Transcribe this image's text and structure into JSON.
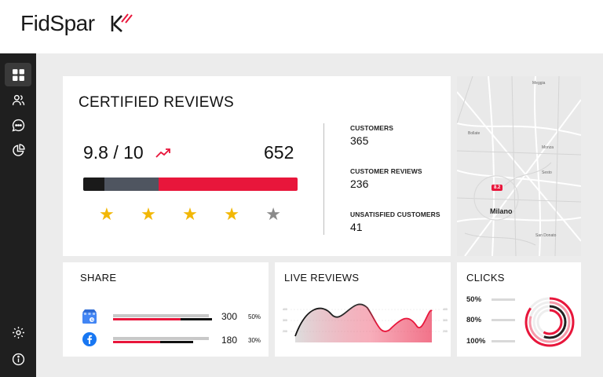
{
  "app": {
    "logo_text": "FidSpar",
    "colors": {
      "accent": "#e8163b",
      "sidebar": "#1f1f1f",
      "background": "#ececec",
      "star": "#f2b705"
    }
  },
  "sidebar": {
    "items": [
      {
        "icon": "dashboard-grid-icon",
        "active": true
      },
      {
        "icon": "users-icon",
        "active": false
      },
      {
        "icon": "chat-bubble-icon",
        "active": false
      },
      {
        "icon": "pie-chart-icon",
        "active": false
      },
      {
        "icon": "gear-icon",
        "active": false
      },
      {
        "icon": "info-icon",
        "active": false
      }
    ]
  },
  "certified": {
    "title": "CERTIFIED REVIEWS",
    "score": "9.8 / 10",
    "total": "652",
    "bar_segments": [
      {
        "fraction": 0.1,
        "color": "#1a1a1a"
      },
      {
        "fraction": 0.25,
        "color": "#4f5560"
      },
      {
        "fraction": 0.65,
        "color": "#e8163b"
      }
    ],
    "stars": {
      "filled": 4,
      "total": 5
    },
    "stats": [
      {
        "label": "CUSTOMERS",
        "value": "365"
      },
      {
        "label": "CUSTOMER REVIEWS",
        "value": "236"
      },
      {
        "label": "UNSATISFIED CUSTOMERS",
        "value": "41"
      }
    ]
  },
  "map": {
    "city": "Milano",
    "pin": "8.2"
  },
  "share": {
    "title": "SHARE",
    "rows": [
      {
        "icon": "google-my-business-icon",
        "value": "300",
        "percent": "50%",
        "fill": 0.5
      },
      {
        "icon": "facebook-icon",
        "value": "180",
        "percent": "30%",
        "fill": 0.3
      }
    ]
  },
  "live": {
    "title": "LIVE REVIEWS"
  },
  "clicks": {
    "title": "CLICKS",
    "rows": [
      {
        "label": "50%",
        "fill": 0.5
      },
      {
        "label": "80%",
        "fill": 0.8
      },
      {
        "label": "100%",
        "fill": 1.0
      }
    ]
  }
}
